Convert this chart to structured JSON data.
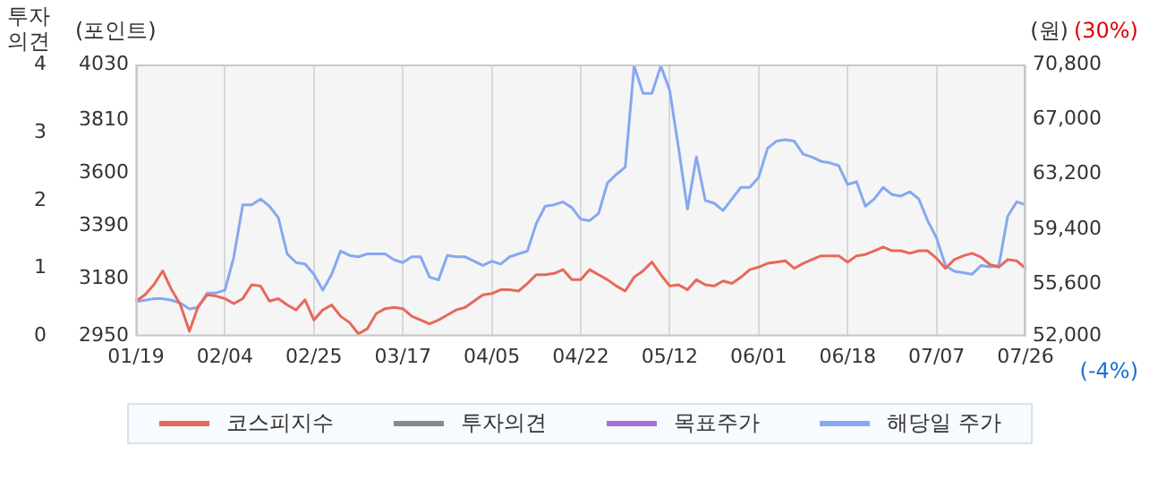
{
  "chart_data": {
    "type": "line",
    "y3label": "투자의견",
    "ylabel": "(포인트)",
    "y2label": "(원)",
    "annotations": [
      "(30%)",
      "(-4%)"
    ],
    "categories": [
      "01/19",
      null,
      null,
      null,
      null,
      null,
      null,
      null,
      null,
      null,
      "02/04",
      null,
      null,
      null,
      null,
      null,
      null,
      null,
      null,
      null,
      "02/25",
      null,
      null,
      null,
      null,
      null,
      null,
      null,
      null,
      null,
      "03/17",
      null,
      null,
      null,
      null,
      null,
      null,
      null,
      null,
      null,
      "04/05",
      null,
      null,
      null,
      null,
      null,
      null,
      null,
      null,
      null,
      "04/22",
      null,
      null,
      null,
      null,
      null,
      null,
      null,
      null,
      null,
      "05/12",
      null,
      null,
      null,
      null,
      null,
      null,
      null,
      null,
      null,
      "06/01",
      null,
      null,
      null,
      null,
      null,
      null,
      null,
      null,
      null,
      "06/18",
      null,
      null,
      null,
      null,
      null,
      null,
      null,
      null,
      null,
      "07/07",
      null,
      null,
      null,
      null,
      null,
      null,
      null,
      null,
      null,
      "07/26"
    ],
    "series": [
      {
        "name": "코스피지수",
        "color": "#e8685a",
        "values": [
          3090,
          3115,
          3155,
          3210,
          3135,
          3075,
          2970,
          3070,
          3115,
          3110,
          3100,
          3080,
          3100,
          3155,
          3150,
          3090,
          3100,
          3075,
          3055,
          3095,
          3015,
          3055,
          3075,
          3030,
          3005,
          2960,
          2980,
          3040,
          3060,
          3065,
          3060,
          3030,
          3015,
          3000,
          3015,
          3035,
          3055,
          3065,
          3090,
          3115,
          3120,
          3135,
          3135,
          3130,
          3160,
          3195,
          3195,
          3200,
          3215,
          3175,
          3175,
          3215,
          3195,
          3175,
          3150,
          3130,
          3185,
          3210,
          3245,
          3195,
          3150,
          3155,
          3135,
          3175,
          3155,
          3150,
          3170,
          3160,
          3185,
          3215,
          3225,
          3240,
          3245,
          3250,
          3220,
          3240,
          3255,
          3270,
          3270,
          3270,
          3245,
          3270,
          3275,
          3290,
          3305,
          3290,
          3290,
          3280,
          3290,
          3290,
          3260,
          3220,
          3255,
          3270,
          3280,
          3265,
          3235,
          3225,
          3255,
          3250,
          3220
        ]
      },
      {
        "name": "투자의견",
        "color": "#888888",
        "axis": "y3",
        "values": [
          null,
          null,
          null,
          null,
          null,
          null,
          null,
          null,
          null,
          null,
          null,
          null,
          null,
          null,
          null,
          null,
          null,
          null,
          null,
          null,
          null,
          null,
          null,
          null,
          null,
          null,
          null,
          null,
          null,
          null,
          null,
          null,
          null,
          null,
          null,
          null,
          null,
          null,
          null,
          null,
          null,
          null,
          null,
          null,
          null,
          null,
          null,
          null,
          null,
          null,
          null,
          null,
          null,
          null,
          null,
          null,
          null,
          null,
          null,
          null,
          null,
          null,
          null,
          null,
          null,
          null,
          null,
          null,
          null,
          null,
          null,
          null,
          null,
          null,
          null,
          null,
          null,
          null,
          null,
          null,
          null,
          null,
          null,
          null,
          null,
          null,
          null,
          null,
          null,
          null,
          null,
          null,
          null,
          null,
          null,
          null,
          null,
          null,
          null,
          null,
          null
        ]
      },
      {
        "name": "목표주가",
        "color": "#a86fd0",
        "axis": "y2",
        "values": [
          null,
          null,
          null,
          null,
          null,
          null,
          null,
          null,
          null,
          null,
          null,
          null,
          null,
          null,
          null,
          null,
          null,
          null,
          null,
          null,
          null,
          null,
          null,
          null,
          null,
          null,
          null,
          null,
          null,
          null,
          null,
          null,
          null,
          null,
          null,
          null,
          null,
          null,
          null,
          null,
          null,
          null,
          null,
          null,
          null,
          null,
          null,
          null,
          null,
          null,
          null,
          null,
          null,
          null,
          null,
          null,
          null,
          null,
          null,
          null,
          null,
          null,
          null,
          null,
          null,
          null,
          null,
          null,
          null,
          null,
          null,
          null,
          null,
          null,
          null,
          null,
          null,
          null,
          null,
          null,
          null,
          null,
          null,
          null,
          null,
          null,
          null,
          null,
          null,
          null,
          null,
          null,
          null,
          null,
          null,
          null,
          null,
          null,
          null,
          null,
          null
        ]
      },
      {
        "name": "해당일 주가",
        "color": "#86a8f0",
        "axis": "y2",
        "values": [
          54400,
          54500,
          54600,
          54600,
          54500,
          54300,
          53900,
          54000,
          55000,
          55000,
          55200,
          57500,
          61100,
          61100,
          61500,
          61000,
          60200,
          57700,
          57100,
          57000,
          56300,
          55200,
          56300,
          57900,
          57600,
          57500,
          57700,
          57700,
          57700,
          57300,
          57100,
          57500,
          57500,
          56100,
          55900,
          57600,
          57500,
          57500,
          57200,
          56900,
          57200,
          57000,
          57500,
          57700,
          57900,
          59800,
          61000,
          61100,
          61300,
          60900,
          60100,
          60000,
          60500,
          62600,
          63200,
          63700,
          70700,
          68800,
          68800,
          70700,
          69000,
          65000,
          60800,
          64400,
          61400,
          61200,
          60700,
          61500,
          62300,
          62300,
          63000,
          65000,
          65500,
          65600,
          65500,
          64600,
          64400,
          64100,
          64000,
          63800,
          62500,
          62700,
          61000,
          61500,
          62300,
          61800,
          61700,
          62000,
          61500,
          60000,
          58800,
          56900,
          56500,
          56400,
          56300,
          56900,
          56800,
          56900,
          60300,
          61300,
          61100
        ]
      }
    ],
    "ylim": [
      2950,
      4030
    ],
    "yticks": [
      2950,
      3180,
      3390,
      3600,
      3810,
      4030
    ],
    "y2lim": [
      52000,
      70800
    ],
    "y2ticks": [
      {
        "value": 52000,
        "label": "52,000"
      },
      {
        "value": 55600,
        "label": "55,600"
      },
      {
        "value": 59400,
        "label": "59,400"
      },
      {
        "value": 63200,
        "label": "63,200"
      },
      {
        "value": 67000,
        "label": "67,000"
      },
      {
        "value": 70800,
        "label": "70,800"
      }
    ],
    "y3lim": [
      0,
      4
    ],
    "y3ticks": [
      0,
      1,
      2,
      3,
      4
    ],
    "grid": "x",
    "legend": "bottom"
  }
}
